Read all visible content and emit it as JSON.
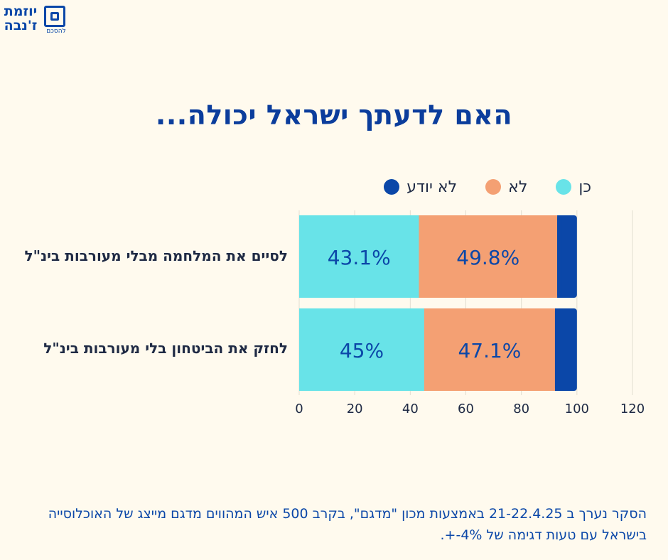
{
  "logo": {
    "line1": "יוזמת",
    "line2": "ז'נבה",
    "sub": "להסכם"
  },
  "colors": {
    "background": "#fffaee",
    "yes": "#68e3e8",
    "no": "#f4a073",
    "dont_know": "#0b47a8",
    "title": "#0b3d9c"
  },
  "chart_data": {
    "type": "bar",
    "orientation": "horizontal",
    "stacked": true,
    "title": "האם לדעתך ישראל יכולה...",
    "categories": [
      "לסיים את המלחמה מבלי מעורבות בינ\"ל",
      "לחזק את הביטחון בלי מעורבות בינ\"ל"
    ],
    "series": [
      {
        "name": "כן",
        "values": [
          43.1,
          45
        ],
        "labels": [
          "43.1%",
          "45%"
        ],
        "color": "#68e3e8"
      },
      {
        "name": "לא",
        "values": [
          49.8,
          47.1
        ],
        "labels": [
          "49.8%",
          "47.1%"
        ],
        "color": "#f4a073"
      },
      {
        "name": "לא יודע",
        "values": [
          7.1,
          7.9
        ],
        "labels": [
          "",
          ""
        ],
        "color": "#0b47a8"
      }
    ],
    "xlim": [
      0,
      120
    ],
    "xticks": [
      "0",
      "20",
      "40",
      "60",
      "80",
      "100",
      "120"
    ],
    "grid": true,
    "legend_position": "top"
  },
  "footer": {
    "note": "הסקר נערך ב 21-22.4.25 באמצעות מכון \"מדגם\", בקרב 500 איש המהווים מדגם מייצג של האוכלוסייה בישראל עם טעות דגימה של 4%-+."
  }
}
